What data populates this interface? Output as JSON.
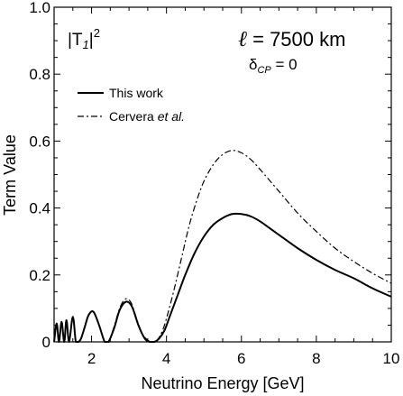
{
  "chart_data": {
    "type": "line",
    "xlabel": "Neutrino Energy [GeV]",
    "ylabel": "Term Value",
    "xlim": [
      1,
      10
    ],
    "ylim": [
      0,
      1.0
    ],
    "x_ticks": [
      2,
      4,
      6,
      8,
      10
    ],
    "x_tick_labels": [
      "2",
      "4",
      "6",
      "8",
      "10"
    ],
    "y_ticks": [
      0,
      0.2,
      0.4,
      0.6,
      0.8,
      1.0
    ],
    "y_tick_labels": [
      "0",
      "0.2",
      "0.4",
      "0.6",
      "0.8",
      "1.0"
    ],
    "grid": false,
    "legend_position": "top-left",
    "annotations": {
      "term": {
        "base": "|T",
        "sub": "1",
        "close": "|",
        "sup": "2"
      },
      "baseline": {
        "symbol": "ℓ",
        "text": " = 7500 km"
      },
      "phase": {
        "base": "δ",
        "sub": "CP",
        "text": " = 0"
      }
    },
    "series": [
      {
        "name": "This work",
        "style": "solid",
        "color": "#000000",
        "x": [
          1.0,
          1.07,
          1.13,
          1.2,
          1.27,
          1.33,
          1.4,
          1.5,
          1.58,
          1.65,
          1.72,
          1.82,
          1.92,
          2.05,
          2.2,
          2.35,
          2.45,
          2.6,
          2.75,
          2.92,
          3.08,
          3.25,
          3.42,
          3.55,
          3.68,
          3.8,
          3.95,
          4.1,
          4.3,
          4.5,
          4.75,
          5.0,
          5.25,
          5.5,
          5.75,
          6.0,
          6.25,
          6.5,
          6.75,
          7.0,
          7.5,
          8.0,
          8.5,
          9.0,
          9.5,
          10.0
        ],
        "y": [
          0.0,
          0.055,
          0.0,
          0.06,
          0.0,
          0.065,
          0.0,
          0.075,
          0.0,
          0.0,
          0.01,
          0.045,
          0.08,
          0.09,
          0.05,
          0.0,
          0.0,
          0.04,
          0.095,
          0.12,
          0.105,
          0.05,
          0.01,
          0.0,
          0.0,
          0.01,
          0.035,
          0.08,
          0.14,
          0.2,
          0.265,
          0.315,
          0.35,
          0.37,
          0.382,
          0.382,
          0.375,
          0.36,
          0.34,
          0.32,
          0.28,
          0.245,
          0.215,
          0.19,
          0.16,
          0.135
        ]
      },
      {
        "name": "Cervera et al.",
        "name_plain": "Cervera",
        "name_italic": "et al.",
        "style": "dashdot",
        "color": "#000000",
        "x": [
          1.0,
          1.07,
          1.13,
          1.2,
          1.27,
          1.33,
          1.4,
          1.5,
          1.58,
          1.65,
          1.72,
          1.82,
          1.92,
          2.05,
          2.2,
          2.35,
          2.45,
          2.6,
          2.75,
          2.9,
          3.05,
          3.2,
          3.35,
          3.5,
          3.62,
          3.75,
          3.88,
          4.0,
          4.2,
          4.4,
          4.6,
          4.8,
          5.0,
          5.25,
          5.5,
          5.75,
          6.0,
          6.25,
          6.5,
          7.0,
          7.5,
          8.0,
          8.5,
          9.0,
          9.5,
          10.0
        ],
        "y": [
          0.0,
          0.055,
          0.0,
          0.06,
          0.0,
          0.065,
          0.0,
          0.075,
          0.0,
          0.0,
          0.01,
          0.045,
          0.08,
          0.09,
          0.05,
          0.0,
          0.0,
          0.045,
          0.1,
          0.128,
          0.118,
          0.07,
          0.025,
          0.005,
          0.0,
          0.005,
          0.03,
          0.07,
          0.155,
          0.25,
          0.345,
          0.42,
          0.48,
          0.53,
          0.56,
          0.572,
          0.565,
          0.545,
          0.515,
          0.45,
          0.385,
          0.33,
          0.28,
          0.24,
          0.205,
          0.175
        ]
      }
    ]
  }
}
